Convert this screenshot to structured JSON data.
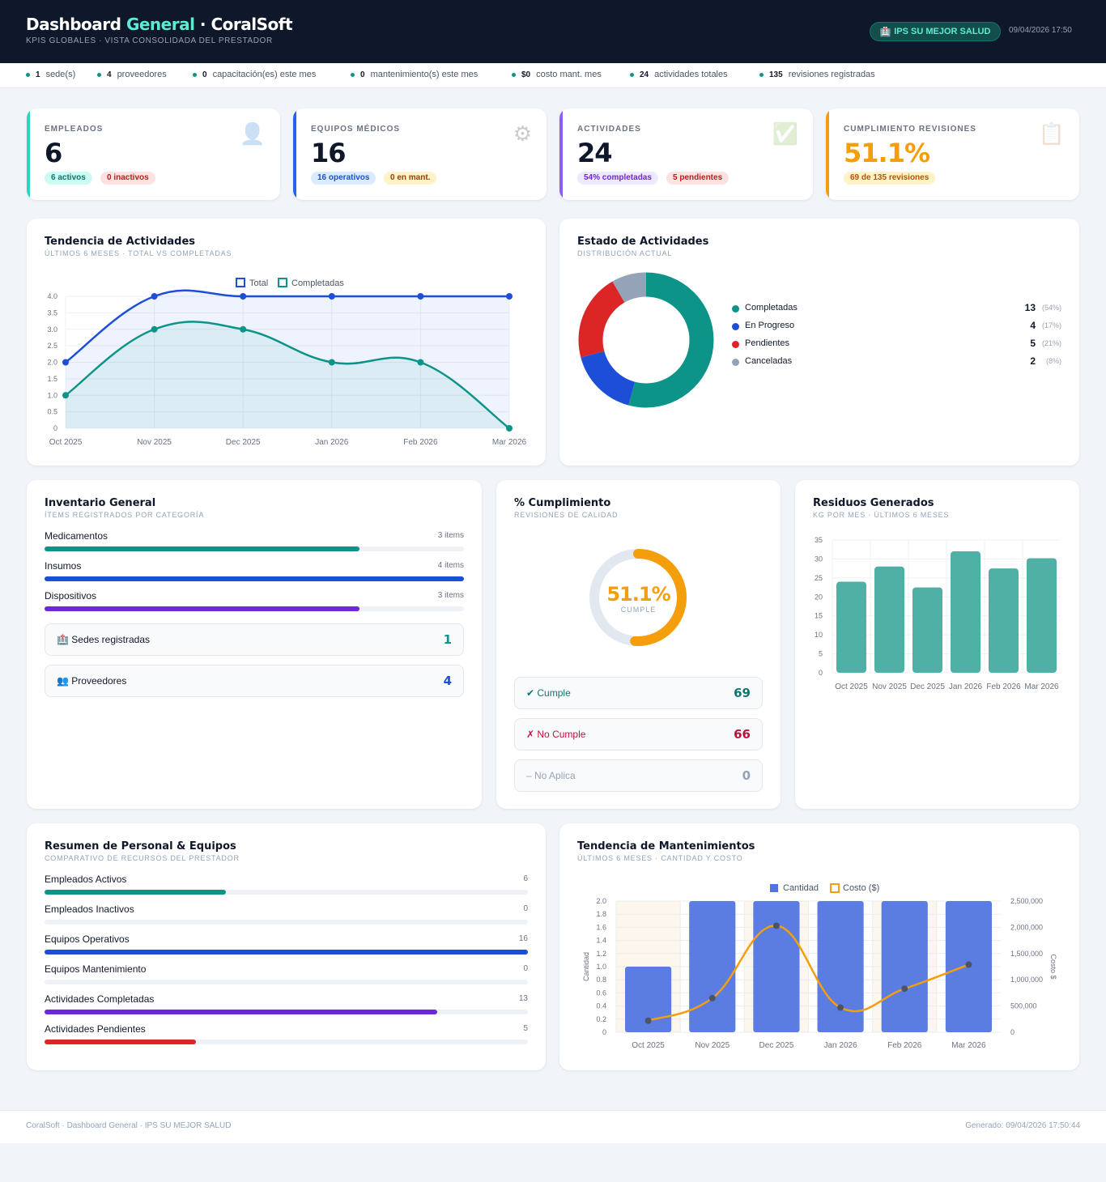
{
  "header": {
    "title_part1": "Dashboard ",
    "title_accent": "General",
    "title_part2": " · CoralSoft",
    "subtitle": "KPIS GLOBALES · VISTA CONSOLIDADA DEL PRESTADOR",
    "badge_icon": "🏥",
    "badge": "IPS SU MEJOR SALUD",
    "datetime": "09/04/2026 17:50"
  },
  "strip": [
    {
      "value": "1",
      "label": "sede(s)"
    },
    {
      "value": "4",
      "label": "proveedores"
    },
    {
      "value": "0",
      "label": "capacitación(es) este mes"
    },
    {
      "value": "0",
      "label": "mantenimiento(s) este mes"
    },
    {
      "value": "$0",
      "label": "costo mant. mes"
    },
    {
      "value": "24",
      "label": "actividades totales"
    },
    {
      "value": "135",
      "label": "revisiones registradas"
    }
  ],
  "kpis": {
    "empleados": {
      "label": "EMPLEADOS",
      "value": "6",
      "pill1": "6 activos",
      "pill2": "0 inactivos",
      "icon": "👤",
      "color": "#2dd4bf"
    },
    "equipos": {
      "label": "EQUIPOS MÉDICOS",
      "value": "16",
      "pill1": "16 operativos",
      "pill2": "0 en mant.",
      "icon": "⚙",
      "color": "#2563eb"
    },
    "actividades": {
      "label": "ACTIVIDADES",
      "value": "24",
      "pill1": "54% completadas",
      "pill2": "5 pendientes",
      "icon": "✅",
      "color": "#7c3aed"
    },
    "cumplimiento": {
      "label": "CUMPLIMIENTO REVISIONES",
      "value": "51.1%",
      "pill1": "69 de 135 revisiones",
      "icon": "📋",
      "color": "#f59e0b"
    }
  },
  "trend": {
    "title": "Tendencia de Actividades",
    "subtitle": "ÚLTIMOS 6 MESES · TOTAL VS COMPLETADAS",
    "legend_total": "Total",
    "legend_completadas": "Completadas"
  },
  "estado": {
    "title": "Estado de Actividades",
    "subtitle": "DISTRIBUCIÓN ACTUAL",
    "items": [
      {
        "label": "Completadas",
        "value": "13",
        "pct": "(54%)",
        "color": "#0d9488"
      },
      {
        "label": "En Progreso",
        "value": "4",
        "pct": "(17%)",
        "color": "#1d4ed8"
      },
      {
        "label": "Pendientes",
        "value": "5",
        "pct": "(21%)",
        "color": "#dc2626"
      },
      {
        "label": "Canceladas",
        "value": "2",
        "pct": "(8%)",
        "color": "#94a3b8"
      }
    ]
  },
  "inventario": {
    "title": "Inventario General",
    "subtitle": "ÍTEMS REGISTRADOS POR CATEGORÍA",
    "items": [
      {
        "label": "Medicamentos",
        "count": "3 items",
        "ratio": 0.75,
        "color": "#0d9488"
      },
      {
        "label": "Insumos",
        "count": "4 items",
        "ratio": 1.0,
        "color": "#1d4ed8"
      },
      {
        "label": "Dispositivos",
        "count": "3 items",
        "ratio": 0.75,
        "color": "#6d28d9"
      }
    ],
    "sedes_label": "Sedes registradas",
    "sedes_icon": "🏥",
    "sedes_value": "1",
    "prov_label": "Proveedores",
    "prov_icon": "👥",
    "prov_value": "4"
  },
  "cumplimiento": {
    "title": "% Cumplimiento",
    "subtitle": "REVISIONES DE CALIDAD",
    "value": "51.1%",
    "ratio": 0.511,
    "caption": "CUMPLE",
    "cumple_label": "✔ Cumple",
    "cumple_value": "69",
    "nocumple_label": "✗ No Cumple",
    "nocumple_value": "66",
    "noaplica_label": "– No Aplica",
    "noaplica_value": "0"
  },
  "residuos": {
    "title": "Residuos Generados",
    "subtitle": "KG POR MES · ÚLTIMOS 6 MESES"
  },
  "resumen": {
    "title": "Resumen de Personal & Equipos",
    "subtitle": "COMPARATIVO DE RECURSOS DEL PRESTADOR",
    "items": [
      {
        "label": "Empleados Activos",
        "value": "6",
        "ratio": 0.375,
        "color": "#0d9488"
      },
      {
        "label": "Empleados Inactivos",
        "value": "0",
        "ratio": 0,
        "color": "#dc2626"
      },
      {
        "label": "Equipos Operativos",
        "value": "16",
        "ratio": 1.0,
        "color": "#1d4ed8"
      },
      {
        "label": "Equipos Mantenimiento",
        "value": "0",
        "ratio": 0,
        "color": "#f59e0b"
      },
      {
        "label": "Actividades Completadas",
        "value": "13",
        "ratio": 0.8125,
        "color": "#6d28d9"
      },
      {
        "label": "Actividades Pendientes",
        "value": "5",
        "ratio": 0.3125,
        "color": "#dc2626"
      }
    ]
  },
  "mant": {
    "title": "Tendencia de Mantenimientos",
    "subtitle": "ÚLTIMOS 6 MESES · CANTIDAD Y COSTO",
    "legend_cantidad": "Cantidad",
    "legend_costo": "Costo ($)"
  },
  "footer": {
    "left": "CoralSoft · Dashboard General · IPS SU MEJOR SALUD",
    "right": "Generado: 09/04/2026 17:50:44"
  },
  "chart_data": [
    {
      "type": "line",
      "title": "Tendencia de Actividades",
      "x": [
        "Oct 2025",
        "Nov 2025",
        "Dec 2025",
        "Jan 2026",
        "Feb 2026",
        "Mar 2026"
      ],
      "series": [
        {
          "name": "Total",
          "values": [
            2,
            4,
            4,
            4,
            4,
            4
          ],
          "color": "#1d4ed8"
        },
        {
          "name": "Completadas",
          "values": [
            1,
            3,
            3,
            2,
            2,
            0
          ],
          "color": "#0d9488"
        }
      ],
      "ylim": [
        0,
        4
      ],
      "yticks": [
        "0",
        "0.5",
        "1.0",
        "1.5",
        "2.0",
        "2.5",
        "3.0",
        "3.5",
        "4.0"
      ],
      "legend": "top-center",
      "grid": true
    },
    {
      "type": "pie",
      "title": "Estado de Actividades",
      "categories": [
        "Completadas",
        "En Progreso",
        "Pendientes",
        "Canceladas"
      ],
      "values": [
        13,
        4,
        5,
        2
      ]
    },
    {
      "type": "bar",
      "title": "Residuos Generados",
      "categories": [
        "Oct 2025",
        "Nov 2025",
        "Dec 2025",
        "Jan 2026",
        "Feb 2026",
        "Mar 2026"
      ],
      "values": [
        24,
        28,
        22.5,
        32,
        27.5,
        30.2
      ],
      "ylim": [
        0,
        35
      ],
      "yticks": [
        "0",
        "5",
        "10",
        "15",
        "20",
        "25",
        "30",
        "35"
      ],
      "color": "#4fb0a5",
      "grid": true
    },
    {
      "type": "bar",
      "title": "Tendencia de Mantenimientos",
      "categories": [
        "Oct 2025",
        "Nov 2025",
        "Dec 2025",
        "Jan 2026",
        "Feb 2026",
        "Mar 2026"
      ],
      "series": [
        {
          "name": "Cantidad",
          "values": [
            1,
            2,
            2,
            2,
            2,
            2
          ],
          "color": "#4f73e0",
          "axis": "left"
        },
        {
          "name": "Costo ($)",
          "values": [
            220000,
            650000,
            2030000,
            470000,
            830000,
            1290000
          ],
          "color": "#f59e0b",
          "axis": "right"
        }
      ],
      "ylabel": "Cantidad",
      "y2label": "Costo $",
      "ylim": [
        0,
        2
      ],
      "y2lim": [
        0,
        2500000
      ],
      "yticks": [
        "0",
        "0.2",
        "0.4",
        "0.6",
        "0.8",
        "1.0",
        "1.2",
        "1.4",
        "1.6",
        "1.8",
        "2.0"
      ],
      "y2ticks": [
        "0",
        "500,000",
        "1,000,000",
        "1,500,000",
        "2,000,000",
        "2,500,000"
      ],
      "legend": "top-center",
      "grid": true
    }
  ]
}
